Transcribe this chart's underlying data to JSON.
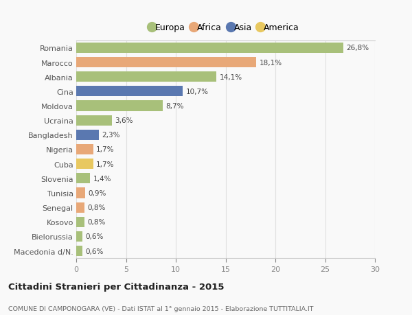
{
  "categories": [
    "Romania",
    "Marocco",
    "Albania",
    "Cina",
    "Moldova",
    "Ucraina",
    "Bangladesh",
    "Nigeria",
    "Cuba",
    "Slovenia",
    "Tunisia",
    "Senegal",
    "Kosovo",
    "Bielorussia",
    "Macedonia d/N."
  ],
  "values": [
    26.8,
    18.1,
    14.1,
    10.7,
    8.7,
    3.6,
    2.3,
    1.7,
    1.7,
    1.4,
    0.9,
    0.8,
    0.8,
    0.6,
    0.6
  ],
  "labels": [
    "26,8%",
    "18,1%",
    "14,1%",
    "10,7%",
    "8,7%",
    "3,6%",
    "2,3%",
    "1,7%",
    "1,7%",
    "1,4%",
    "0,9%",
    "0,8%",
    "0,8%",
    "0,6%",
    "0,6%"
  ],
  "colors": [
    "#a8c07a",
    "#e8a878",
    "#a8c07a",
    "#5a78b0",
    "#a8c07a",
    "#a8c07a",
    "#5a78b0",
    "#e8a878",
    "#e8c860",
    "#a8c07a",
    "#e8a878",
    "#e8a878",
    "#a8c07a",
    "#a8c07a",
    "#a8c07a"
  ],
  "legend_labels": [
    "Europa",
    "Africa",
    "Asia",
    "America"
  ],
  "legend_colors": [
    "#a8c07a",
    "#e8a878",
    "#5a78b0",
    "#e8c860"
  ],
  "title": "Cittadini Stranieri per Cittadinanza - 2015",
  "subtitle": "COMUNE DI CAMPONOGARA (VE) - Dati ISTAT al 1° gennaio 2015 - Elaborazione TUTTITALIA.IT",
  "xlim": [
    0,
    30
  ],
  "xticks": [
    0,
    5,
    10,
    15,
    20,
    25,
    30
  ],
  "bg_color": "#f9f9f9",
  "grid_color": "#e0e0e0",
  "bar_height": 0.72
}
